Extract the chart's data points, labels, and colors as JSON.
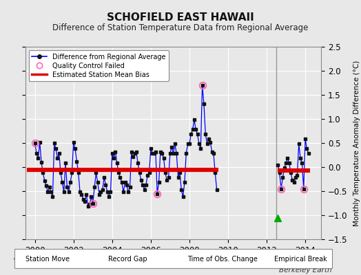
{
  "title": "SCHOFIELD EAST HAWAII",
  "subtitle": "Difference of Station Temperature Data from Regional Average",
  "ylabel": "Monthly Temperature Anomaly Difference (°C)",
  "credit": "Berkeley Earth",
  "xlim": [
    1999.5,
    2014.83
  ],
  "ylim": [
    -1.5,
    2.5
  ],
  "yticks": [
    -1.5,
    -1.0,
    -0.5,
    0.0,
    0.5,
    1.0,
    1.5,
    2.0,
    2.5
  ],
  "xticks": [
    2000,
    2002,
    2004,
    2006,
    2008,
    2010,
    2012,
    2014
  ],
  "fig_bg": "#e8e8e8",
  "plot_bg": "#e8e8e8",
  "line_color": "#0000ff",
  "marker_color": "#111111",
  "bias_color": "#dd0000",
  "grid_color": "#ffffff",
  "vertical_line_color": "#999999",
  "segment1_bias": -0.05,
  "segment2_bias": -0.07,
  "segment1_start": 1999.6,
  "segment1_end": 2009.5,
  "segment2_start": 2012.58,
  "segment2_end": 2014.25,
  "record_gap_x": 2012.58,
  "record_gap_y": -1.05,
  "vertical_line_x": 2012.5,
  "qc_failed_points": [
    [
      2000.0,
      0.5
    ],
    [
      2003.0,
      -0.75
    ],
    [
      2006.33,
      -0.55
    ],
    [
      2008.67,
      1.7
    ],
    [
      2012.75,
      -0.45
    ],
    [
      2013.92,
      -0.45
    ]
  ],
  "data": [
    [
      2000.0,
      0.5
    ],
    [
      2000.083,
      0.28
    ],
    [
      2000.167,
      0.18
    ],
    [
      2000.25,
      0.52
    ],
    [
      2000.333,
      0.1
    ],
    [
      2000.417,
      -0.12
    ],
    [
      2000.5,
      -0.28
    ],
    [
      2000.583,
      -0.38
    ],
    [
      2000.667,
      -0.52
    ],
    [
      2000.75,
      -0.42
    ],
    [
      2000.833,
      -0.52
    ],
    [
      2000.917,
      -0.62
    ],
    [
      2001.0,
      0.5
    ],
    [
      2001.083,
      0.38
    ],
    [
      2001.167,
      0.18
    ],
    [
      2001.25,
      0.28
    ],
    [
      2001.333,
      -0.12
    ],
    [
      2001.417,
      -0.32
    ],
    [
      2001.5,
      -0.52
    ],
    [
      2001.583,
      0.08
    ],
    [
      2001.667,
      -0.42
    ],
    [
      2001.75,
      -0.52
    ],
    [
      2001.833,
      -0.32
    ],
    [
      2001.917,
      -0.12
    ],
    [
      2002.0,
      0.52
    ],
    [
      2002.083,
      0.38
    ],
    [
      2002.167,
      0.12
    ],
    [
      2002.25,
      -0.12
    ],
    [
      2002.333,
      -0.52
    ],
    [
      2002.417,
      -0.57
    ],
    [
      2002.5,
      -0.67
    ],
    [
      2002.583,
      -0.72
    ],
    [
      2002.667,
      -0.57
    ],
    [
      2002.75,
      -0.82
    ],
    [
      2002.833,
      -0.77
    ],
    [
      2002.917,
      -0.62
    ],
    [
      2003.0,
      -0.75
    ],
    [
      2003.083,
      -0.42
    ],
    [
      2003.167,
      -0.12
    ],
    [
      2003.25,
      -0.32
    ],
    [
      2003.333,
      -0.57
    ],
    [
      2003.417,
      -0.52
    ],
    [
      2003.5,
      -0.47
    ],
    [
      2003.583,
      -0.22
    ],
    [
      2003.667,
      -0.37
    ],
    [
      2003.75,
      -0.52
    ],
    [
      2003.833,
      -0.62
    ],
    [
      2003.917,
      -0.52
    ],
    [
      2004.0,
      0.28
    ],
    [
      2004.083,
      0.18
    ],
    [
      2004.167,
      0.32
    ],
    [
      2004.25,
      0.08
    ],
    [
      2004.333,
      -0.12
    ],
    [
      2004.417,
      -0.22
    ],
    [
      2004.5,
      -0.32
    ],
    [
      2004.583,
      -0.52
    ],
    [
      2004.667,
      -0.32
    ],
    [
      2004.75,
      -0.37
    ],
    [
      2004.833,
      -0.52
    ],
    [
      2004.917,
      -0.42
    ],
    [
      2005.0,
      0.32
    ],
    [
      2005.083,
      0.22
    ],
    [
      2005.167,
      0.28
    ],
    [
      2005.25,
      0.32
    ],
    [
      2005.333,
      0.08
    ],
    [
      2005.417,
      -0.12
    ],
    [
      2005.5,
      -0.27
    ],
    [
      2005.583,
      -0.37
    ],
    [
      2005.667,
      -0.47
    ],
    [
      2005.75,
      -0.37
    ],
    [
      2005.833,
      -0.17
    ],
    [
      2005.917,
      -0.12
    ],
    [
      2006.0,
      0.38
    ],
    [
      2006.083,
      0.28
    ],
    [
      2006.167,
      0.28
    ],
    [
      2006.25,
      0.32
    ],
    [
      2006.333,
      -0.55
    ],
    [
      2006.417,
      -0.32
    ],
    [
      2006.5,
      0.32
    ],
    [
      2006.583,
      0.28
    ],
    [
      2006.667,
      0.18
    ],
    [
      2006.75,
      -0.12
    ],
    [
      2006.833,
      -0.27
    ],
    [
      2006.917,
      -0.22
    ],
    [
      2007.0,
      0.28
    ],
    [
      2007.083,
      0.42
    ],
    [
      2007.167,
      0.28
    ],
    [
      2007.25,
      0.48
    ],
    [
      2007.333,
      0.28
    ],
    [
      2007.417,
      -0.22
    ],
    [
      2007.5,
      -0.12
    ],
    [
      2007.583,
      -0.47
    ],
    [
      2007.667,
      -0.62
    ],
    [
      2007.75,
      -0.32
    ],
    [
      2007.833,
      0.28
    ],
    [
      2007.917,
      0.48
    ],
    [
      2008.0,
      0.48
    ],
    [
      2008.083,
      0.68
    ],
    [
      2008.167,
      0.78
    ],
    [
      2008.25,
      0.98
    ],
    [
      2008.333,
      0.78
    ],
    [
      2008.417,
      0.68
    ],
    [
      2008.5,
      0.48
    ],
    [
      2008.583,
      0.38
    ],
    [
      2008.667,
      1.7
    ],
    [
      2008.75,
      1.32
    ],
    [
      2008.833,
      0.68
    ],
    [
      2008.917,
      0.48
    ],
    [
      2009.0,
      0.58
    ],
    [
      2009.083,
      0.52
    ],
    [
      2009.167,
      0.32
    ],
    [
      2009.25,
      0.28
    ],
    [
      2009.333,
      -0.12
    ],
    [
      2009.417,
      -0.47
    ],
    [
      2012.583,
      0.05
    ],
    [
      2012.667,
      -0.12
    ],
    [
      2012.75,
      -0.45
    ],
    [
      2012.833,
      -0.22
    ],
    [
      2012.917,
      -0.02
    ],
    [
      2013.0,
      0.08
    ],
    [
      2013.083,
      0.18
    ],
    [
      2013.167,
      0.08
    ],
    [
      2013.25,
      -0.12
    ],
    [
      2013.333,
      -0.27
    ],
    [
      2013.417,
      -0.32
    ],
    [
      2013.5,
      -0.22
    ],
    [
      2013.583,
      -0.17
    ],
    [
      2013.667,
      0.48
    ],
    [
      2013.75,
      0.18
    ],
    [
      2013.833,
      0.08
    ],
    [
      2013.917,
      -0.45
    ],
    [
      2014.0,
      0.58
    ],
    [
      2014.083,
      0.38
    ],
    [
      2014.167,
      0.28
    ]
  ]
}
